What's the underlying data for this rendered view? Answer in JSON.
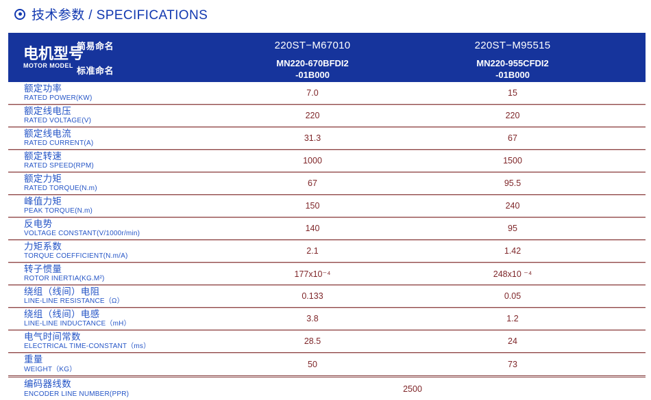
{
  "title": {
    "text": "技术参数 / SPECIFICATIONS"
  },
  "header": {
    "model_label_zh": "电机型号",
    "model_label_en": "MOTOR MODEL",
    "simple_name_label": "简易命名",
    "standard_name_label": "标准命名",
    "columns": [
      {
        "simple_name": "220ST−M67010",
        "standard_name": "MN220-670BFDI2\n-01B000"
      },
      {
        "simple_name": "220ST−M95515",
        "standard_name": "MN220-955CFDI2\n-01B000"
      }
    ]
  },
  "rows": [
    {
      "label_zh": "额定功率",
      "label_en": "RATED POWER(KW)",
      "values": [
        "7.0",
        "15"
      ]
    },
    {
      "label_zh": "额定线电压",
      "label_en": "RATED VOLTAGE(V)",
      "values": [
        "220",
        "220"
      ]
    },
    {
      "label_zh": "额定线电流",
      "label_en": "RATED CURRENT(A)",
      "values": [
        "31.3",
        "67"
      ]
    },
    {
      "label_zh": "额定转速",
      "label_en": "RATED SPEED(RPM)",
      "values": [
        "1000",
        "1500"
      ]
    },
    {
      "label_zh": "额定力矩",
      "label_en": "RATED TORQUE(N.m)",
      "values": [
        "67",
        "95.5"
      ]
    },
    {
      "label_zh": "峰值力矩",
      "label_en": "PEAK TORQUE(N.m)",
      "values": [
        "150",
        "240"
      ]
    },
    {
      "label_zh": "反电势",
      "label_en": "VOLTAGE CONSTANT(V/1000r/min)",
      "values": [
        "140",
        "95"
      ]
    },
    {
      "label_zh": "力矩系数",
      "label_en": "TORQUE COEFFICIENT(N.m/A)",
      "values": [
        "2.1",
        "1.42"
      ]
    },
    {
      "label_zh": "转子惯量",
      "label_en": "ROTOR INERTIA(KG.M²)",
      "values": [
        "177x10⁻⁴",
        "248x10 ⁻⁴"
      ]
    },
    {
      "label_zh": "绕组（线间）电阻",
      "label_en": "LINE-LINE RESISTANCE（Ω）",
      "values": [
        "0.133",
        "0.05"
      ]
    },
    {
      "label_zh": "绕组（线间）电感",
      "label_en": "LINE-LINE INDUCTANCE（mH）",
      "values": [
        "3.8",
        "1.2"
      ]
    },
    {
      "label_zh": "电气时间常数",
      "label_en": "ELECTRICAL TIME-CONSTANT（ms）",
      "values": [
        "28.5",
        "24"
      ]
    },
    {
      "label_zh": "重量",
      "label_en": "WEIGHT（KG）",
      "values": [
        "50",
        "73"
      ]
    },
    {
      "label_zh": "编码器线数",
      "label_en": "ENCODER LINE NUMBER(PPR)",
      "values": [
        "2500"
      ]
    }
  ],
  "colors": {
    "accent_blue": "#1138b0",
    "header_bg": "#16349c",
    "label_blue": "#2454c6",
    "value_maroon": "#7e2528",
    "divider": "#8d4747"
  }
}
